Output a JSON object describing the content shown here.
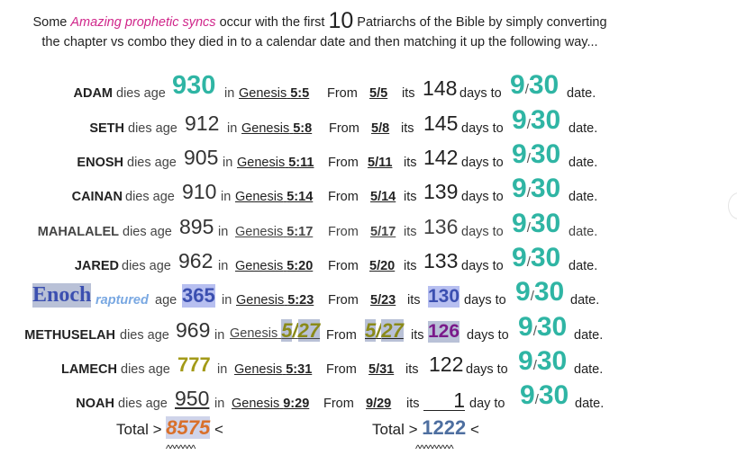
{
  "intro": {
    "line1_a": "Some ",
    "line1_b": "Amazing prophetic syncs",
    "line1_c": " occur with the first ",
    "line1_d": "10",
    "line1_e": " Patriarchs of the Bible by simply converting",
    "line2": "the chapter vs combo they died in to a calendar date and then matching it up the following way..."
  },
  "labels": {
    "dies_age": "dies age",
    "age": "age",
    "in": "in",
    "from": "From",
    "its": "its",
    "days_to": "days to",
    "day_to": "day  to",
    "nine": "9",
    "slash": "/",
    "thirty": "30",
    "date": "date."
  },
  "rows": [
    {
      "name": "ADAM",
      "age": "930",
      "book": "Genesis",
      "ref": "5:5",
      "date": "5/5",
      "days": "148"
    },
    {
      "name": "SETH",
      "age": "912",
      "book": "Genesis",
      "ref": "5:8",
      "date": "5/8",
      "days": "145"
    },
    {
      "name": "ENOSH",
      "age": "905",
      "book": "Genesis",
      "ref": "5:11",
      "date": "5/11",
      "days": "142"
    },
    {
      "name": "CAINAN",
      "age": "910",
      "book": "Genesis",
      "ref": "5:14",
      "date": "5/14",
      "days": "139"
    },
    {
      "name": "MAHALALEL",
      "age": "895",
      "book": "Genesis",
      "ref": "5:17",
      "date": "5/17",
      "days": "136"
    },
    {
      "name": "JARED",
      "age": "962",
      "book": "Genesis",
      "ref": "5:20",
      "date": "5/20",
      "days": "133"
    },
    {
      "name": "Enoch",
      "raptured": "raptured",
      "age": "365",
      "book": "Genesis",
      "ref": "5:23",
      "date": "5/23",
      "days": "130"
    },
    {
      "name": "METHUSELAH",
      "age": "969",
      "book": "Genesis",
      "ref_a": "5",
      "ref_b": "27",
      "date_a": "5",
      "date_b": "27",
      "days": "126"
    },
    {
      "name": "LAMECH",
      "age": "777",
      "book": "Genesis",
      "ref": "5:31",
      "date": "5/31",
      "days": "122"
    },
    {
      "name": "NOAH",
      "age": "950",
      "book": "Genesis",
      "ref": "9:29",
      "date": "9/29",
      "days": "1"
    }
  ],
  "totals": {
    "label": "Total >",
    "age_total": "8575",
    "days_total": "1222",
    "lt": "<",
    "carets1": "^^^^^^^",
    "carets2": "^^^^^^^^^"
  }
}
